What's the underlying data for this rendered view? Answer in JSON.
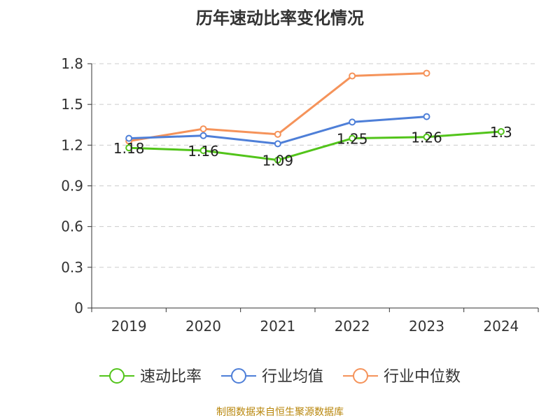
{
  "chart_data": {
    "type": "line",
    "title": "历年速动比率变化情况",
    "categories": [
      "2019",
      "2020",
      "2021",
      "2022",
      "2023",
      "2024"
    ],
    "ylim": [
      0,
      1.8
    ],
    "yticks": [
      0,
      0.3,
      0.6,
      0.9,
      1.2,
      1.5,
      1.8
    ],
    "ytick_labels": [
      "0",
      "0.3",
      "0.6",
      "0.9",
      "1.2",
      "1.5",
      "1.8"
    ],
    "grid": true,
    "legend_position": "bottom-center",
    "series": [
      {
        "name": "速动比率",
        "color": "#52c41a",
        "values": [
          1.18,
          1.16,
          1.09,
          1.25,
          1.26,
          1.3
        ],
        "labels": [
          "1.18",
          "1.16",
          "1.09",
          "1.25",
          "1.26",
          "1.3"
        ]
      },
      {
        "name": "行业均值",
        "color": "#4e7fd8",
        "values": [
          1.25,
          1.27,
          1.21,
          1.37,
          1.41,
          null
        ]
      },
      {
        "name": "行业中位数",
        "color": "#f5935a",
        "values": [
          1.23,
          1.32,
          1.28,
          1.71,
          1.73,
          null
        ]
      }
    ]
  },
  "source_text": "制图数据来自恒生聚源数据库"
}
